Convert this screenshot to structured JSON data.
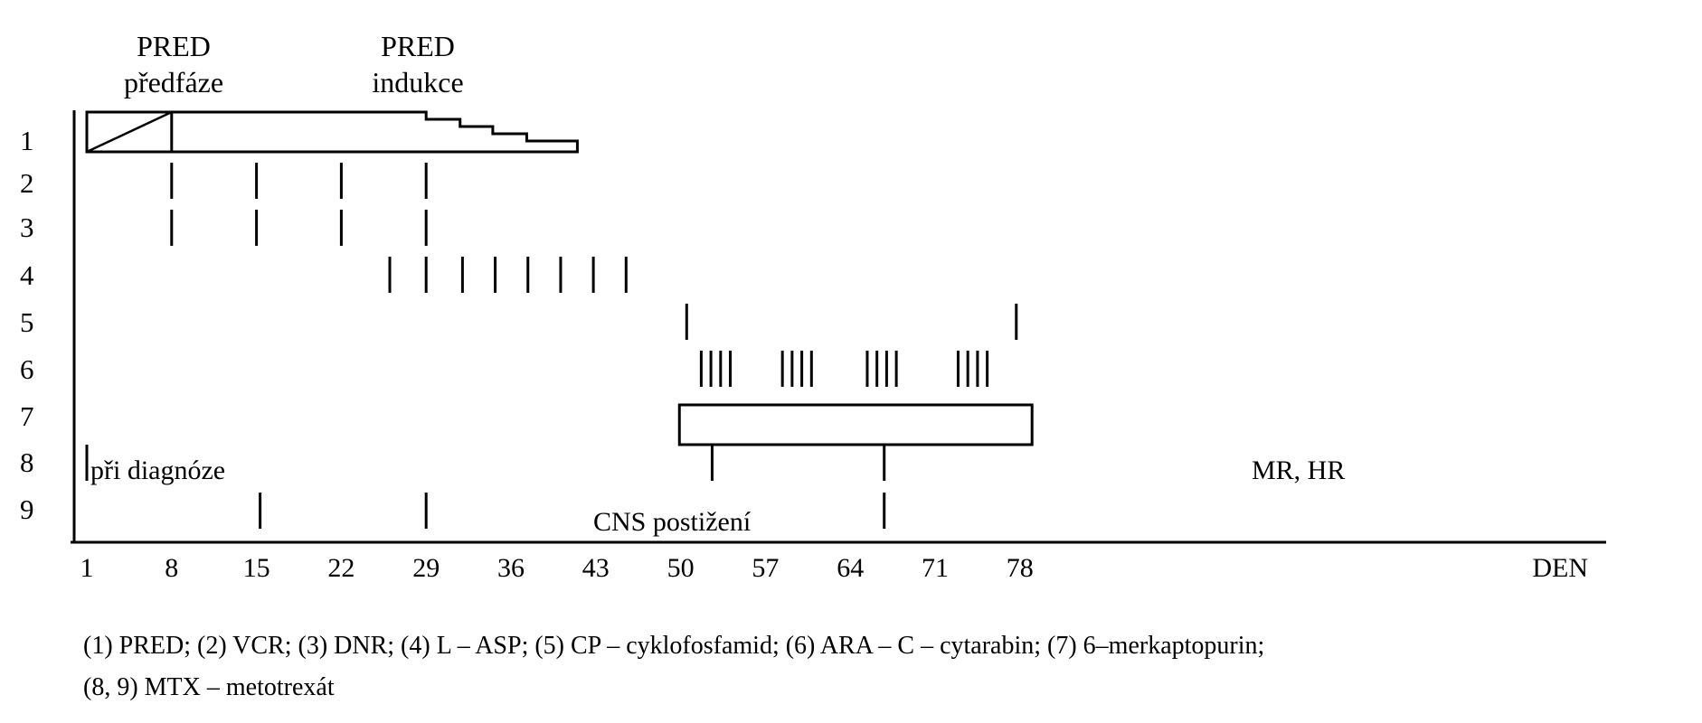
{
  "headers": [
    {
      "line1": "PRED",
      "line2": "předfáze"
    },
    {
      "line1": "PRED",
      "line2": "indukce"
    }
  ],
  "row_labels": [
    "1",
    "2",
    "3",
    "4",
    "5",
    "6",
    "7",
    "8",
    "9"
  ],
  "axis": {
    "ticks": [
      1,
      8,
      15,
      22,
      29,
      36,
      43,
      50,
      57,
      64,
      71,
      78
    ],
    "ticks_text": [
      "1",
      "8",
      "15",
      "22",
      "29",
      "36",
      "43",
      "50",
      "57",
      "64",
      "71",
      "78"
    ],
    "unit_label": "DEN",
    "min": 1,
    "max": 85
  },
  "annotations": {
    "row8_start": "při diagnóze",
    "row8_end": "MR, HR",
    "row9_mid": "CNS postižení"
  },
  "markers": {
    "row2": [
      8,
      15,
      22,
      29
    ],
    "row3": [
      8,
      15,
      22,
      29
    ],
    "row4": [
      26,
      29,
      32,
      34.7,
      37.4,
      40.1,
      42.8,
      45.5
    ],
    "row5": [
      50.5,
      77.7
    ],
    "row6": [
      51.7,
      52.5,
      53.3,
      54.1,
      58.4,
      59.2,
      60,
      60.8,
      65.4,
      66.2,
      67,
      67.8,
      72.9,
      73.7,
      74.5,
      75.3
    ],
    "row8": [
      1,
      52.6,
      66.8
    ],
    "row9": [
      15.3,
      29,
      66.8
    ]
  },
  "pred_bar": {
    "prephase": {
      "start": 1,
      "end": 8
    },
    "induction_full_end": 29,
    "taper_steps": [
      29,
      31.8,
      34.5,
      37.3
    ]
  },
  "row7_bar": {
    "start": 49.9,
    "end": 79
  },
  "legend": {
    "line1": "(1) PRED; (2) VCR; (3) DNR; (4) L – ASP; (5) CP – cyklofosfamid; (6) ARA – C – cytarabin; (7) 6–merkaptopurin;",
    "line2": "(8, 9) MTX – metotrexát"
  }
}
